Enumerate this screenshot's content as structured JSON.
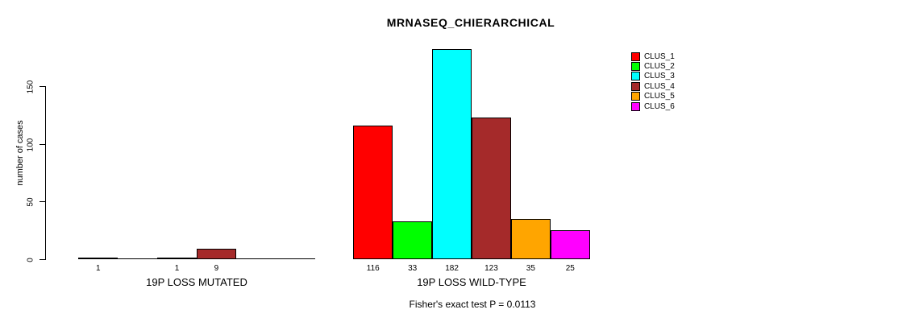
{
  "title": "MRNASEQ_CHIERARCHICAL",
  "footer": "Fisher's exact test P = 0.0113",
  "chart_data": {
    "type": "bar",
    "title": "MRNASEQ_CHIERARCHICAL",
    "ylabel": "number of cases",
    "xlabel": "",
    "ylim": [
      0,
      150
    ],
    "yticks": [
      "0",
      "50",
      "100",
      "150"
    ],
    "grid": false,
    "legend_position": "right",
    "categories": [
      "19P LOSS MUTATED",
      "19P LOSS WILD-TYPE"
    ],
    "series": [
      {
        "name": "CLUS_1",
        "color": "#FF0000",
        "values": [
          1,
          116
        ]
      },
      {
        "name": "CLUS_2",
        "color": "#00FF00",
        "values": [
          0,
          33
        ]
      },
      {
        "name": "CLUS_3",
        "color": "#00FFFF",
        "values": [
          1,
          182
        ]
      },
      {
        "name": "CLUS_4",
        "color": "#A52A2A",
        "values": [
          9,
          123
        ]
      },
      {
        "name": "CLUS_5",
        "color": "#FFA500",
        "values": [
          0,
          35
        ]
      },
      {
        "name": "CLUS_6",
        "color": "#FF00FF",
        "values": [
          0,
          25
        ]
      }
    ],
    "bar_value_labels_shown_only_if_nonzero": true,
    "annotation": "Fisher's exact test P = 0.0113"
  }
}
